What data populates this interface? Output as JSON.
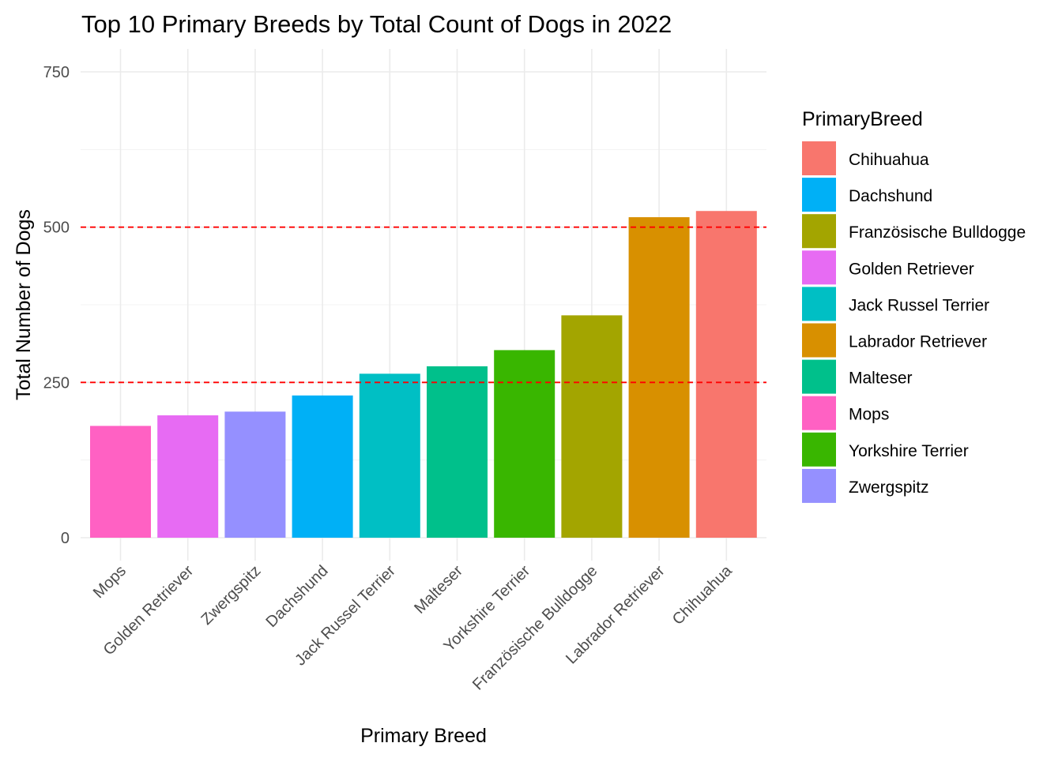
{
  "chart_data": {
    "type": "bar",
    "title": "Top 10 Primary Breeds by Total Count of Dogs in 2022",
    "xlabel": "Primary Breed",
    "ylabel": "Total Number of Dogs",
    "ylim": [
      0,
      750
    ],
    "yticks": [
      0,
      250,
      500,
      750
    ],
    "categories": [
      "Mops",
      "Golden Retriever",
      "Zwergspitz",
      "Dachshund",
      "Jack Russel Terrier",
      "Malteser",
      "Yorkshire Terrier",
      "Französische Bulldogge",
      "Labrador Retriever",
      "Chihuahua"
    ],
    "values": [
      180,
      197,
      203,
      229,
      264,
      276,
      302,
      358,
      516,
      526
    ],
    "bar_colors": [
      "#FF61C3",
      "#E76BF3",
      "#9590FF",
      "#00B0F6",
      "#00BFC4",
      "#00C08B",
      "#39B600",
      "#A3A500",
      "#D89000",
      "#F8766D"
    ],
    "reference_lines": [
      250,
      500
    ],
    "reference_line_color": "#FF0000",
    "grid": true,
    "legend": {
      "title": "PrimaryBreed",
      "position": "right",
      "entries": [
        {
          "label": "Chihuahua",
          "color": "#F8766D"
        },
        {
          "label": "Dachshund",
          "color": "#00B0F6"
        },
        {
          "label": "Französische Bulldogge",
          "color": "#A3A500"
        },
        {
          "label": "Golden Retriever",
          "color": "#E76BF3"
        },
        {
          "label": "Jack Russel Terrier",
          "color": "#00BFC4"
        },
        {
          "label": "Labrador Retriever",
          "color": "#D89000"
        },
        {
          "label": "Malteser",
          "color": "#00C08B"
        },
        {
          "label": "Mops",
          "color": "#FF61C3"
        },
        {
          "label": "Yorkshire Terrier",
          "color": "#39B600"
        },
        {
          "label": "Zwergspitz",
          "color": "#9590FF"
        }
      ]
    }
  }
}
